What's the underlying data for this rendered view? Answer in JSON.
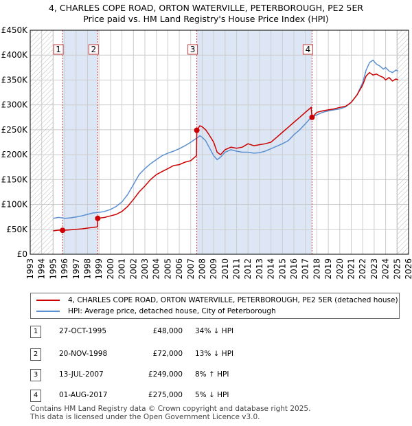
{
  "title_line1": "4, CHARLES COPE ROAD, ORTON WATERVILLE, PETERBOROUGH, PE2 5ER",
  "title_line2": "Price paid vs. HM Land Registry's House Price Index (HPI)",
  "colors": {
    "price_paid": "#cc0000",
    "hpi": "#5b8fd0",
    "shade": "#dde6f5",
    "grid": "#cccccc"
  },
  "legend": {
    "price_paid": "4, CHARLES COPE ROAD, ORTON WATERVILLE, PETERBOROUGH, PE2 5ER (detached house)",
    "hpi": "HPI: Average price, detached house, City of Peterborough"
  },
  "sales": [
    {
      "num": "1",
      "date": "27-OCT-1995",
      "price": "£48,000",
      "hpi": "34% ↓ HPI"
    },
    {
      "num": "2",
      "date": "20-NOV-1998",
      "price": "£72,000",
      "hpi": "13% ↓ HPI"
    },
    {
      "num": "3",
      "date": "13-JUL-2007",
      "price": "£249,000",
      "hpi": "8% ↑ HPI"
    },
    {
      "num": "4",
      "date": "01-AUG-2017",
      "price": "£275,000",
      "hpi": "5% ↓ HPI"
    }
  ],
  "footer_line1": "Contains HM Land Registry data © Crown copyright and database right 2025.",
  "footer_line2": "This data is licensed under the Open Government Licence v3.0.",
  "chart_data": {
    "type": "line",
    "title": "Price paid vs. HM Land Registry's House Price Index (HPI)",
    "xlim": [
      1993,
      2026
    ],
    "ylim": [
      0,
      450000
    ],
    "x_ticks": [
      1993,
      1994,
      1995,
      1996,
      1997,
      1998,
      1999,
      2000,
      2001,
      2002,
      2003,
      2004,
      2005,
      2006,
      2007,
      2008,
      2009,
      2010,
      2011,
      2012,
      2013,
      2014,
      2015,
      2016,
      2017,
      2018,
      2019,
      2020,
      2021,
      2022,
      2023,
      2024,
      2025,
      2026
    ],
    "y_ticks": [
      {
        "value": 0,
        "label": "£0"
      },
      {
        "value": 50000,
        "label": "£50K"
      },
      {
        "value": 100000,
        "label": "£100K"
      },
      {
        "value": 150000,
        "label": "£150K"
      },
      {
        "value": 200000,
        "label": "£200K"
      },
      {
        "value": 250000,
        "label": "£250K"
      },
      {
        "value": 300000,
        "label": "£300K"
      },
      {
        "value": 350000,
        "label": "£350K"
      },
      {
        "value": 400000,
        "label": "£400K"
      },
      {
        "value": 450000,
        "label": "£450K"
      }
    ],
    "hatched_ranges": [
      [
        1993,
        1995.0
      ],
      [
        2025.0,
        2026
      ]
    ],
    "sale_markers": [
      {
        "label": "1",
        "x": 1995.82,
        "y": 48000
      },
      {
        "label": "2",
        "x": 1998.89,
        "y": 72000
      },
      {
        "label": "3",
        "x": 2007.53,
        "y": 249000
      },
      {
        "label": "4",
        "x": 2017.58,
        "y": 275000
      }
    ],
    "series": [
      {
        "name": "4, CHARLES COPE ROAD, ORTON WATERVILLE, PETERBOROUGH, PE2 5ER (detached house)",
        "color": "#cc0000",
        "x": [
          1995.0,
          1995.5,
          1995.82,
          1996.5,
          1997.0,
          1997.5,
          1998.0,
          1998.5,
          1998.85,
          1998.89,
          1999.5,
          2000.0,
          2000.5,
          2001.0,
          2001.5,
          2002.0,
          2002.5,
          2003.0,
          2003.5,
          2004.0,
          2004.5,
          2005.0,
          2005.5,
          2006.0,
          2006.5,
          2007.0,
          2007.5,
          2007.53,
          2007.8,
          2008.0,
          2008.3,
          2008.6,
          2009.0,
          2009.3,
          2009.6,
          2010.0,
          2010.5,
          2011.0,
          2011.5,
          2012.0,
          2012.5,
          2013.0,
          2013.5,
          2014.0,
          2014.5,
          2015.0,
          2015.5,
          2016.0,
          2016.5,
          2017.0,
          2017.5,
          2017.58,
          2018.0,
          2018.5,
          2019.0,
          2019.5,
          2020.0,
          2020.5,
          2021.0,
          2021.5,
          2022.0,
          2022.3,
          2022.6,
          2022.9,
          2023.2,
          2023.5,
          2023.8,
          2024.0,
          2024.3,
          2024.6,
          2024.9,
          2025.1
        ],
        "y": [
          47000,
          48500,
          48000,
          49000,
          50000,
          51000,
          52500,
          54000,
          55000,
          72000,
          74000,
          77000,
          80000,
          86000,
          96000,
          110000,
          125000,
          137000,
          150000,
          160000,
          166000,
          172000,
          178000,
          180000,
          185000,
          188000,
          198000,
          249000,
          258000,
          256000,
          250000,
          240000,
          225000,
          205000,
          200000,
          210000,
          215000,
          213000,
          215000,
          222000,
          218000,
          220000,
          222000,
          225000,
          235000,
          245000,
          255000,
          265000,
          275000,
          285000,
          295000,
          275000,
          285000,
          288000,
          290000,
          292000,
          295000,
          297000,
          305000,
          320000,
          340000,
          358000,
          365000,
          360000,
          362000,
          358000,
          355000,
          350000,
          355000,
          348000,
          352000,
          350000
        ]
      },
      {
        "name": "HPI: Average price, detached house, City of Peterborough",
        "color": "#5b8fd0",
        "x": [
          1995.0,
          1995.5,
          1996.0,
          1996.5,
          1997.0,
          1997.5,
          1998.0,
          1998.5,
          1999.0,
          1999.5,
          2000.0,
          2000.5,
          2001.0,
          2001.5,
          2002.0,
          2002.5,
          2003.0,
          2003.5,
          2004.0,
          2004.5,
          2005.0,
          2005.5,
          2006.0,
          2006.5,
          2007.0,
          2007.5,
          2007.8,
          2008.0,
          2008.3,
          2008.6,
          2009.0,
          2009.3,
          2009.6,
          2010.0,
          2010.5,
          2011.0,
          2011.5,
          2012.0,
          2012.5,
          2013.0,
          2013.5,
          2014.0,
          2014.5,
          2015.0,
          2015.5,
          2016.0,
          2016.5,
          2017.0,
          2017.5,
          2018.0,
          2018.5,
          2019.0,
          2019.5,
          2020.0,
          2020.5,
          2021.0,
          2021.5,
          2022.0,
          2022.3,
          2022.6,
          2022.9,
          2023.2,
          2023.5,
          2023.8,
          2024.0,
          2024.3,
          2024.6,
          2024.9,
          2025.1
        ],
        "y": [
          72000,
          74000,
          72000,
          73000,
          75000,
          77000,
          80000,
          83000,
          84000,
          86000,
          90000,
          96000,
          105000,
          120000,
          140000,
          160000,
          172000,
          182000,
          190000,
          198000,
          203000,
          207000,
          212000,
          218000,
          225000,
          233000,
          238000,
          235000,
          228000,
          215000,
          198000,
          190000,
          195000,
          205000,
          210000,
          207000,
          205000,
          205000,
          203000,
          204000,
          207000,
          212000,
          217000,
          222000,
          228000,
          240000,
          250000,
          262000,
          275000,
          280000,
          285000,
          288000,
          290000,
          292000,
          296000,
          305000,
          320000,
          345000,
          370000,
          385000,
          390000,
          382000,
          378000,
          372000,
          375000,
          368000,
          365000,
          370000,
          368000
        ]
      }
    ]
  }
}
